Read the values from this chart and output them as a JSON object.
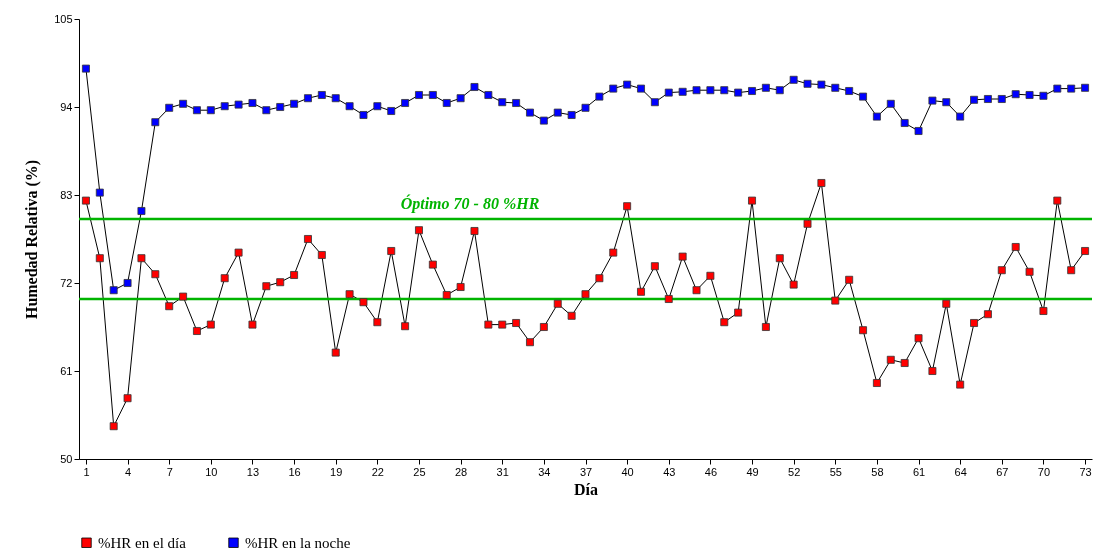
{
  "chart_data": {
    "type": "line",
    "xlabel": "Día",
    "ylabel": "Humedad Relativa (%)",
    "x": [
      1,
      2,
      3,
      4,
      5,
      6,
      7,
      8,
      9,
      10,
      11,
      12,
      13,
      14,
      15,
      16,
      17,
      18,
      19,
      20,
      21,
      22,
      23,
      24,
      25,
      26,
      27,
      28,
      29,
      30,
      31,
      32,
      33,
      34,
      35,
      36,
      37,
      38,
      39,
      40,
      41,
      42,
      43,
      44,
      45,
      46,
      47,
      48,
      49,
      50,
      51,
      52,
      53,
      54,
      55,
      56,
      57,
      58,
      59,
      60,
      61,
      62,
      63,
      64,
      65,
      66,
      67,
      68,
      69,
      70,
      71,
      72,
      73
    ],
    "series": [
      {
        "name": "%HR en el día",
        "color": "#ff0000",
        "values": [
          82.3,
          75.1,
          54.1,
          57.6,
          75.1,
          73.1,
          69.1,
          70.3,
          66,
          66.8,
          72.6,
          75.8,
          66.8,
          71.6,
          72.1,
          73,
          77.5,
          75.5,
          63.3,
          70.6,
          69.6,
          67.1,
          76,
          66.6,
          78.6,
          74.3,
          70.5,
          71.5,
          78.5,
          66.8,
          66.8,
          67,
          64.6,
          66.5,
          69.4,
          67.9,
          70.6,
          72.6,
          75.8,
          81.6,
          70.9,
          74.1,
          70,
          75.3,
          71.1,
          72.9,
          67.1,
          68.3,
          82.3,
          66.5,
          75.1,
          71.8,
          79.4,
          84.5,
          69.8,
          72.4,
          66.1,
          59.5,
          62.4,
          62,
          65.1,
          61,
          69.4,
          59.3,
          67,
          68.1,
          73.6,
          76.5,
          73.4,
          68.5,
          82.3,
          73.6,
          76
        ]
      },
      {
        "name": "%HR en la noche",
        "color": "#0000ff",
        "values": [
          98.8,
          83.3,
          71.1,
          72,
          81,
          92.1,
          93.9,
          94.4,
          93.6,
          93.6,
          94.1,
          94.3,
          94.5,
          93.6,
          94,
          94.4,
          95.1,
          95.5,
          95.1,
          94.1,
          93,
          94.1,
          93.5,
          94.5,
          95.5,
          95.5,
          94.5,
          95.1,
          96.5,
          95.5,
          94.6,
          94.5,
          93.3,
          92.3,
          93.3,
          93,
          93.9,
          95.3,
          96.3,
          96.8,
          96.3,
          94.6,
          95.8,
          95.9,
          96.1,
          96.1,
          96.1,
          95.8,
          96,
          96.4,
          96.1,
          97.4,
          96.9,
          96.8,
          96.4,
          96,
          95.3,
          92.8,
          94.4,
          92,
          91,
          94.8,
          94.6,
          92.8,
          94.9,
          95,
          95,
          95.6,
          95.5,
          95.4,
          96.3,
          96.3,
          96.4
        ]
      }
    ],
    "xlim": [
      0.5,
      73.5
    ],
    "xticks": [
      1,
      4,
      7,
      10,
      13,
      16,
      19,
      22,
      25,
      28,
      31,
      34,
      37,
      40,
      43,
      46,
      49,
      52,
      55,
      58,
      61,
      64,
      67,
      70,
      73
    ],
    "ylim": [
      50,
      105
    ],
    "yticks": [
      50,
      61,
      72,
      83,
      94,
      105
    ],
    "ref_lines": [
      {
        "axis": "y",
        "value": 80,
        "label": "Óptimo 70 - 80 %HR",
        "color": "#00b400"
      },
      {
        "axis": "y",
        "value": 70,
        "color": "#00b400"
      }
    ],
    "grid": false,
    "legend": "bottom",
    "marker": "square",
    "line_style": "solid"
  }
}
